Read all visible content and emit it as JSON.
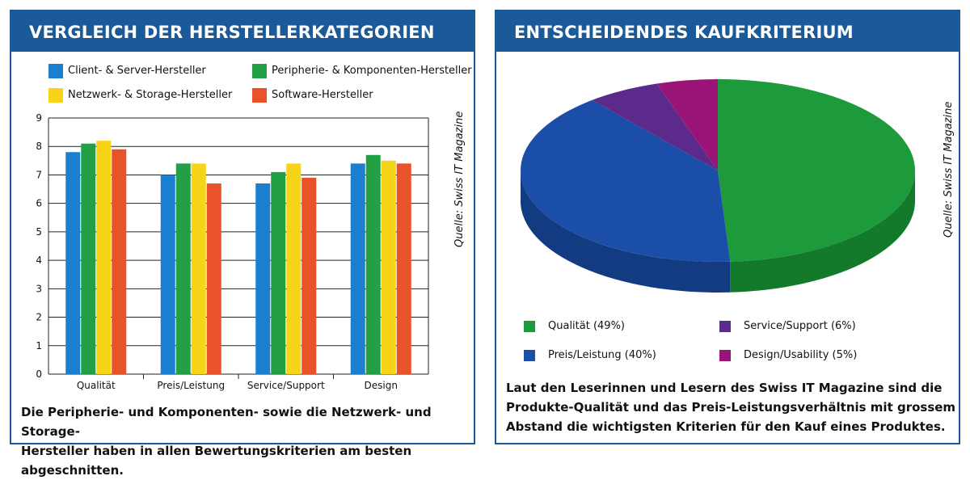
{
  "left_panel": {
    "title": "VERGLEICH DER HERSTELLERKATEGORIEN",
    "source": "Quelle: Swiss IT Magazine",
    "caption_line1": "Die Peripherie- und Komponenten- sowie die Netzwerk- und Storage-",
    "caption_line2": "Hersteller haben in allen Bewertungskriterien am besten abgeschnitten."
  },
  "right_panel": {
    "title": "ENTSCHEIDENDES KAUFKRITERIUM",
    "source": "Quelle: Swiss IT Magazine",
    "caption_line1": "Laut den Leserinnen und Lesern des Swiss IT Magazine sind die",
    "caption_line2": "Produkte-Qualität und das Preis-Leistungsverhältnis mit grossem",
    "caption_line3": "Abstand die wichtigsten Kriterien für den Kauf eines Produktes."
  },
  "chart_data": [
    {
      "type": "bar",
      "title": "VERGLEICH DER HERSTELLERKATEGORIEN",
      "categories": [
        "Qualität",
        "Preis/Leistung",
        "Service/Support",
        "Design"
      ],
      "series": [
        {
          "name": "Client- & Server-Hersteller",
          "color": "#1a7fcf",
          "values": [
            7.8,
            7.0,
            6.7,
            7.4
          ]
        },
        {
          "name": "Peripherie- & Komponenten-Hersteller",
          "color": "#23a046",
          "values": [
            8.1,
            7.4,
            7.1,
            7.7
          ]
        },
        {
          "name": "Netzwerk- & Storage-Hersteller",
          "color": "#f7d417",
          "values": [
            8.2,
            7.4,
            7.4,
            7.5
          ]
        },
        {
          "name": "Software-Hersteller",
          "color": "#e8532a",
          "values": [
            7.9,
            6.7,
            6.9,
            7.4
          ]
        }
      ],
      "yticks": [
        0,
        1,
        2,
        3,
        4,
        5,
        6,
        7,
        8,
        9
      ],
      "ylim": [
        0,
        9
      ],
      "grid": true,
      "legend": "top"
    },
    {
      "type": "pie",
      "title": "ENTSCHEIDENDES KAUFKRITERIUM",
      "slices": [
        {
          "label": "Qualität (49%)",
          "value": 49,
          "color": "#1c9a3c",
          "side": "#137a2c"
        },
        {
          "label": "Preis/Leistung (40%)",
          "value": 40,
          "color": "#1a4ea8",
          "side": "#123b82"
        },
        {
          "label": "Service/Support (6%)",
          "value": 6,
          "color": "#5c2a8a",
          "side": "#441f67"
        },
        {
          "label": "Design/Usability (5%)",
          "value": 5,
          "color": "#9a1478",
          "side": "#730f5a"
        }
      ],
      "legend": "bottom"
    }
  ]
}
